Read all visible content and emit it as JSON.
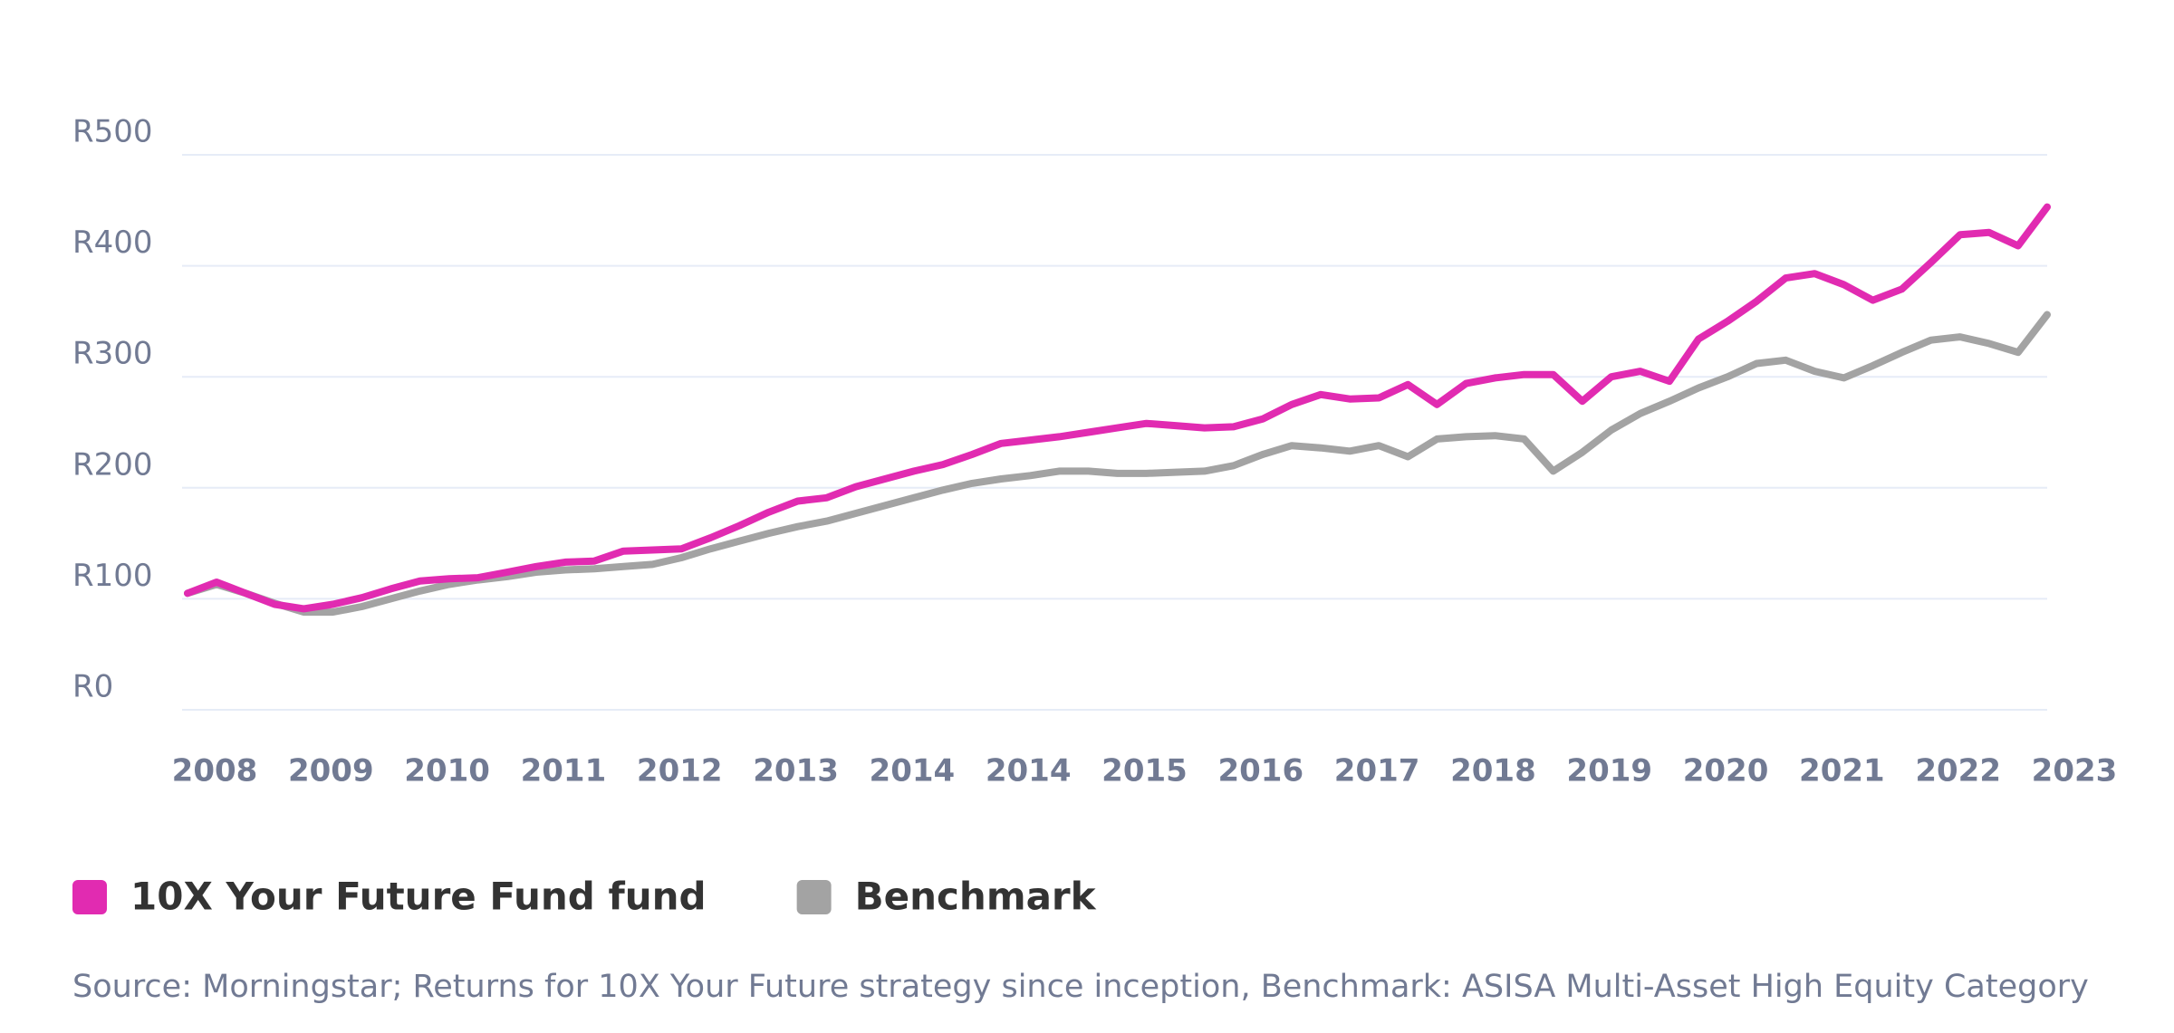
{
  "chart_data": {
    "type": "line",
    "categories": [
      "2008",
      null,
      null,
      null,
      "2009",
      null,
      null,
      null,
      "2010",
      null,
      null,
      null,
      "2011",
      null,
      null,
      null,
      "2012",
      null,
      null,
      null,
      "2013",
      null,
      null,
      null,
      "2014",
      null,
      null,
      null,
      "2014",
      null,
      null,
      null,
      "2015",
      null,
      null,
      null,
      "2016",
      null,
      null,
      null,
      "2017",
      null,
      null,
      null,
      "2018",
      null,
      null,
      null,
      "2019",
      null,
      null,
      null,
      "2020",
      null,
      null,
      null,
      "2021",
      null,
      null,
      null,
      "2022",
      null,
      null,
      null,
      "2023"
    ],
    "series": [
      {
        "name": "10X Your Future Fund fund",
        "color": "#e12bb1",
        "values": [
          105,
          115,
          105,
          95,
          91,
          95,
          101,
          109,
          116,
          118,
          119,
          124,
          129,
          133,
          134,
          143,
          144,
          145,
          155,
          166,
          178,
          188,
          191,
          201,
          208,
          215,
          221,
          230,
          240,
          243,
          246,
          250,
          254,
          258,
          256,
          254,
          255,
          262,
          275,
          284,
          280,
          281,
          293,
          275,
          294,
          299,
          302,
          302,
          278,
          300,
          305,
          296,
          334,
          350,
          368,
          389,
          393,
          383,
          369,
          379,
          403,
          428,
          430,
          418,
          453
        ]
      },
      {
        "name": "Benchmark",
        "color": "#a3a3a3",
        "values": [
          105,
          113,
          105,
          96,
          88,
          88,
          93,
          100,
          107,
          113,
          117,
          120,
          124,
          126,
          127,
          129,
          131,
          137,
          145,
          152,
          159,
          165,
          170,
          177,
          184,
          191,
          198,
          204,
          208,
          211,
          215,
          215,
          213,
          213,
          214,
          215,
          220,
          230,
          238,
          236,
          233,
          238,
          228,
          244,
          246,
          247,
          244,
          215,
          232,
          252,
          267,
          278,
          290,
          300,
          312,
          315,
          305,
          299,
          310,
          322,
          333,
          336,
          330,
          322,
          356
        ]
      }
    ],
    "ylim": [
      0,
      500
    ],
    "yticks": [
      {
        "value": 0,
        "label": "R0"
      },
      {
        "value": 100,
        "label": "R100"
      },
      {
        "value": 200,
        "label": "R200"
      },
      {
        "value": 300,
        "label": "R300"
      },
      {
        "value": 400,
        "label": "R400"
      },
      {
        "value": 500,
        "label": "R500"
      }
    ],
    "grid": true,
    "legend": "bottom-left",
    "source": "Source: Morningstar; Returns for 10X Your Future strategy since inception, Benchmark: ASISA Multi-Asset High Equity Category"
  }
}
